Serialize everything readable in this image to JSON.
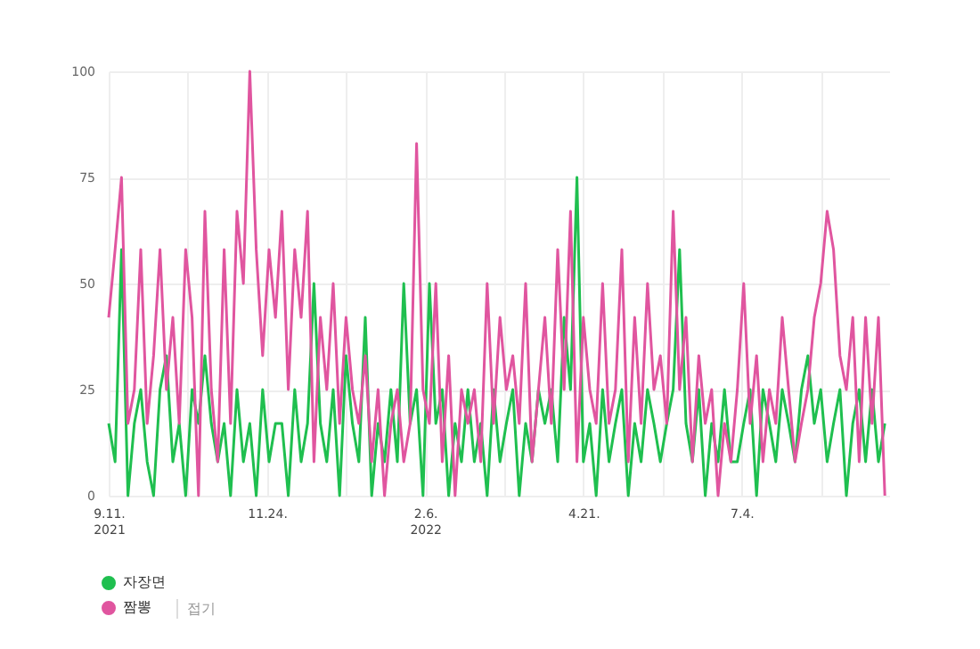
{
  "chart_data": {
    "type": "line",
    "x": [
      "2021-09-11",
      "2021-09-14",
      "2021-09-17",
      "2021-09-20",
      "2021-09-23",
      "2021-09-26",
      "2021-09-29",
      "2021-10-02",
      "2021-10-05",
      "2021-10-08",
      "2021-10-11",
      "2021-10-14",
      "2021-10-17",
      "2021-10-20",
      "2021-10-23",
      "2021-10-26",
      "2021-10-29",
      "2021-11-01",
      "2021-11-04",
      "2021-11-07",
      "2021-11-10",
      "2021-11-13",
      "2021-11-16",
      "2021-11-19",
      "2021-11-22",
      "2021-11-25",
      "2021-11-28",
      "2021-12-01",
      "2021-12-04",
      "2021-12-07",
      "2021-12-10",
      "2021-12-13",
      "2021-12-16",
      "2021-12-19",
      "2021-12-22",
      "2021-12-25",
      "2021-12-28",
      "2021-12-31",
      "2022-01-03",
      "2022-01-06",
      "2022-01-09",
      "2022-01-12",
      "2022-01-15",
      "2022-01-18",
      "2022-01-21",
      "2022-01-24",
      "2022-01-27",
      "2022-01-30",
      "2022-02-02",
      "2022-02-05",
      "2022-02-08",
      "2022-02-11",
      "2022-02-14",
      "2022-02-17",
      "2022-02-20",
      "2022-02-23",
      "2022-02-26",
      "2022-03-01",
      "2022-03-04",
      "2022-03-07",
      "2022-03-10",
      "2022-03-13",
      "2022-03-16",
      "2022-03-19",
      "2022-03-22",
      "2022-03-25",
      "2022-03-28",
      "2022-03-31",
      "2022-04-03",
      "2022-04-06",
      "2022-04-09",
      "2022-04-12",
      "2022-04-15",
      "2022-04-18",
      "2022-04-21",
      "2022-04-24",
      "2022-04-27",
      "2022-04-30",
      "2022-05-03",
      "2022-05-06",
      "2022-05-09",
      "2022-05-12",
      "2022-05-15",
      "2022-05-18",
      "2022-05-21",
      "2022-05-24",
      "2022-05-27",
      "2022-05-30",
      "2022-06-02",
      "2022-06-05",
      "2022-06-08",
      "2022-06-11",
      "2022-06-14",
      "2022-06-17",
      "2022-06-20",
      "2022-06-23",
      "2022-06-26",
      "2022-06-29",
      "2022-07-02",
      "2022-07-05",
      "2022-07-08",
      "2022-07-11",
      "2022-07-14",
      "2022-07-17",
      "2022-07-20",
      "2022-07-23",
      "2022-07-26",
      "2022-07-29",
      "2022-08-01",
      "2022-08-04",
      "2022-08-07",
      "2022-08-10",
      "2022-08-13",
      "2022-08-16",
      "2022-08-19",
      "2022-08-22",
      "2022-08-25",
      "2022-08-28",
      "2022-08-31",
      "2022-09-03",
      "2022-09-06",
      "2022-09-09"
    ],
    "series": [
      {
        "name": "자장면",
        "color": "#1fbf4f",
        "values": [
          17,
          8,
          58,
          0,
          17,
          25,
          8,
          0,
          25,
          33,
          8,
          17,
          0,
          25,
          17,
          33,
          17,
          8,
          17,
          0,
          25,
          8,
          17,
          0,
          25,
          8,
          17,
          17,
          0,
          25,
          8,
          17,
          50,
          17,
          8,
          25,
          0,
          33,
          17,
          8,
          42,
          0,
          17,
          8,
          25,
          8,
          50,
          17,
          25,
          0,
          50,
          17,
          25,
          0,
          17,
          8,
          25,
          8,
          17,
          0,
          25,
          8,
          17,
          25,
          0,
          17,
          8,
          25,
          17,
          25,
          8,
          42,
          25,
          75,
          8,
          17,
          0,
          25,
          8,
          17,
          25,
          0,
          17,
          8,
          25,
          17,
          8,
          17,
          25,
          58,
          17,
          8,
          25,
          0,
          17,
          8,
          25,
          8,
          8,
          17,
          25,
          0,
          25,
          17,
          8,
          25,
          17,
          8,
          25,
          33,
          17,
          25,
          8,
          17,
          25,
          0,
          17,
          25,
          8,
          25,
          8,
          17
        ]
      },
      {
        "name": "짬뽕",
        "color": "#e0559f",
        "values": [
          42,
          58,
          75,
          17,
          25,
          58,
          17,
          33,
          58,
          25,
          42,
          17,
          58,
          42,
          0,
          67,
          25,
          8,
          58,
          17,
          67,
          50,
          100,
          58,
          33,
          58,
          42,
          67,
          25,
          58,
          42,
          67,
          8,
          42,
          25,
          50,
          17,
          42,
          25,
          17,
          33,
          8,
          25,
          0,
          17,
          25,
          8,
          17,
          83,
          25,
          17,
          50,
          8,
          33,
          0,
          25,
          17,
          25,
          8,
          50,
          17,
          42,
          25,
          33,
          17,
          50,
          8,
          25,
          42,
          17,
          58,
          25,
          67,
          8,
          42,
          25,
          17,
          50,
          17,
          25,
          58,
          8,
          42,
          17,
          50,
          25,
          33,
          17,
          67,
          25,
          42,
          8,
          33,
          17,
          25,
          0,
          17,
          8,
          25,
          50,
          17,
          33,
          8,
          25,
          17,
          42,
          25,
          8,
          17,
          25,
          42,
          50,
          67,
          58,
          33,
          25,
          42,
          8,
          42,
          17,
          42,
          0
        ]
      }
    ],
    "xlim": [
      "2021-09-11",
      "2022-09-11"
    ],
    "xticks": [
      {
        "value": "2021-09-11",
        "label": "9.11.\n2021"
      },
      {
        "value": "2021-10-18",
        "label": null
      },
      {
        "value": "2021-11-24",
        "label": "11.24."
      },
      {
        "value": "2021-12-31",
        "label": null
      },
      {
        "value": "2022-02-06",
        "label": "2.6.\n2022"
      },
      {
        "value": "2022-03-15",
        "label": null
      },
      {
        "value": "2022-04-21",
        "label": "4.21."
      },
      {
        "value": "2022-05-28",
        "label": null
      },
      {
        "value": "2022-07-04",
        "label": "7.4."
      },
      {
        "value": "2022-08-10",
        "label": null
      }
    ],
    "ylim": [
      0,
      100
    ],
    "yticks": [
      0,
      25,
      50,
      75,
      100
    ],
    "grid": true,
    "legend": "bottom left",
    "line_style": "solid",
    "marker": "none",
    "annotations": [
      "접기"
    ]
  }
}
